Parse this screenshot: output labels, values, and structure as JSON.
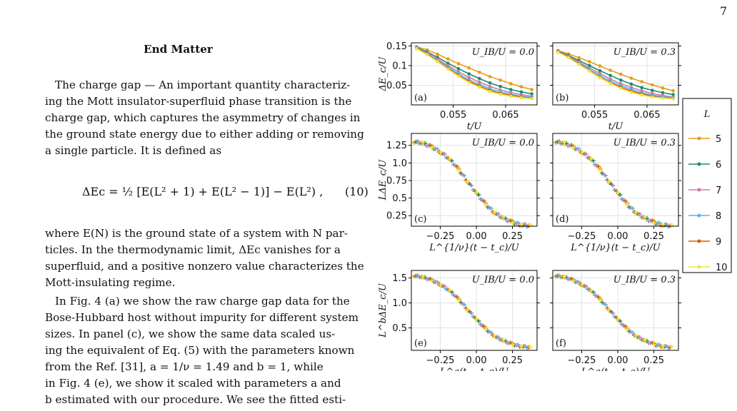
{
  "page_number": "7",
  "text": {
    "heading": "End Matter",
    "lines": [
      "The charge gap — An important quantity characteriz-",
      "ing the Mott insulator-superfluid phase transition is the",
      "charge gap, which captures the asymmetry of changes in",
      "the ground state energy due to either adding or removing",
      "a single particle. It is defined as",
      "where E(N) is the ground state of a system with N par-",
      "ticles. In the thermodynamic limit, ΔEc vanishes for a",
      "superfluid, and a positive nonzero value characterizes the",
      "Mott-insulating regime.",
      "In Fig. 4 (a) we show the raw charge gap data for the",
      "Bose-Hubbard host without impurity for different system",
      "sizes. In panel (c), we show the same data scaled us-",
      "ing the equivalent of Eq. (5) with the parameters known",
      "from the Ref. [31], a = 1/ν = 1.49 and b = 1, while",
      "in Fig. 4 (e), we show it scaled with parameters a and",
      "b estimated with our procedure. We see the fitted esti-"
    ],
    "equation": "ΔEc = ½ [E(L² + 1) + E(L² − 1)] − E(L²) ,",
    "equation_number": "(10)"
  },
  "figure": {
    "legend_title": "L",
    "series_names": [
      "5",
      "6",
      "7",
      "8",
      "9",
      "10"
    ],
    "colors": [
      "#e69c1a",
      "#1b8a6b",
      "#cc79a7",
      "#56b4e9",
      "#d55e00",
      "#f0e442"
    ]
  },
  "chart_data": [
    {
      "type": "line",
      "panel": "(a)",
      "annotation": "U_IB/U = 0.0",
      "xlabel": "t/U",
      "ylabel": "ΔE_c/U",
      "xlim": [
        0.047,
        0.071
      ],
      "ylim": [
        0.0,
        0.158
      ],
      "xticks": [
        0.055,
        0.065
      ],
      "yticks": [
        0.05,
        0.1,
        0.15
      ],
      "x": [
        0.048,
        0.05,
        0.052,
        0.054,
        0.056,
        0.058,
        0.06,
        0.062,
        0.064,
        0.066,
        0.068,
        0.07
      ],
      "series": [
        {
          "name": "5",
          "values": [
            0.148,
            0.14,
            0.129,
            0.117,
            0.105,
            0.094,
            0.083,
            0.072,
            0.063,
            0.054,
            0.046,
            0.039
          ]
        },
        {
          "name": "6",
          "values": [
            0.146,
            0.135,
            0.121,
            0.106,
            0.092,
            0.079,
            0.067,
            0.056,
            0.047,
            0.039,
            0.033,
            0.028
          ]
        },
        {
          "name": "7",
          "values": [
            0.145,
            0.132,
            0.116,
            0.1,
            0.084,
            0.07,
            0.058,
            0.047,
            0.038,
            0.031,
            0.026,
            0.022
          ]
        },
        {
          "name": "8",
          "values": [
            0.144,
            0.13,
            0.113,
            0.096,
            0.079,
            0.064,
            0.052,
            0.041,
            0.033,
            0.027,
            0.022,
            0.019
          ]
        },
        {
          "name": "9",
          "values": [
            0.143,
            0.129,
            0.111,
            0.093,
            0.075,
            0.06,
            0.048,
            0.037,
            0.029,
            0.024,
            0.02,
            0.017
          ]
        },
        {
          "name": "10",
          "values": [
            0.143,
            0.128,
            0.11,
            0.091,
            0.073,
            0.057,
            0.045,
            0.034,
            0.027,
            0.022,
            0.018,
            0.016
          ]
        }
      ]
    },
    {
      "type": "line",
      "panel": "(b)",
      "annotation": "U_IB/U = 0.3",
      "xlabel": "t/U",
      "ylabel": "",
      "xlim": [
        0.047,
        0.071
      ],
      "ylim": [
        0.0,
        0.158
      ],
      "xticks": [
        0.055,
        0.065
      ],
      "yticks": [
        0.05,
        0.1,
        0.15
      ],
      "x": [
        0.048,
        0.05,
        0.052,
        0.054,
        0.056,
        0.058,
        0.06,
        0.062,
        0.064,
        0.066,
        0.068,
        0.07
      ],
      "series": [
        {
          "name": "5",
          "values": [
            0.138,
            0.13,
            0.12,
            0.11,
            0.099,
            0.088,
            0.078,
            0.068,
            0.059,
            0.051,
            0.043,
            0.036
          ]
        },
        {
          "name": "6",
          "values": [
            0.137,
            0.126,
            0.113,
            0.1,
            0.087,
            0.075,
            0.063,
            0.053,
            0.044,
            0.037,
            0.031,
            0.026
          ]
        },
        {
          "name": "7",
          "values": [
            0.136,
            0.124,
            0.109,
            0.094,
            0.08,
            0.066,
            0.054,
            0.044,
            0.036,
            0.029,
            0.024,
            0.02
          ]
        },
        {
          "name": "8",
          "values": [
            0.135,
            0.122,
            0.106,
            0.09,
            0.075,
            0.061,
            0.049,
            0.039,
            0.031,
            0.025,
            0.021,
            0.018
          ]
        },
        {
          "name": "9",
          "values": [
            0.135,
            0.121,
            0.104,
            0.087,
            0.071,
            0.057,
            0.045,
            0.035,
            0.028,
            0.022,
            0.018,
            0.016
          ]
        },
        {
          "name": "10",
          "values": [
            0.134,
            0.12,
            0.103,
            0.086,
            0.069,
            0.055,
            0.042,
            0.032,
            0.025,
            0.02,
            0.017,
            0.015
          ]
        }
      ]
    },
    {
      "type": "scatter",
      "panel": "(c)",
      "annotation": "U_IB/U = 0.0",
      "xlabel": "L^{1/ν}(t − t_c)/U",
      "ylabel": "LΔE_c/U",
      "xlim": [
        -0.45,
        0.42
      ],
      "ylim": [
        0.1,
        1.42
      ],
      "xticks": [
        -0.25,
        0.0,
        0.25
      ],
      "yticks": [
        0.25,
        0.5,
        0.75,
        1.0,
        1.25
      ],
      "collapse": "c"
    },
    {
      "type": "scatter",
      "panel": "(d)",
      "annotation": "U_IB/U = 0.3",
      "xlabel": "L^{1/ν}(t − t_c)/U",
      "ylabel": "",
      "xlim": [
        -0.45,
        0.42
      ],
      "ylim": [
        0.1,
        1.42
      ],
      "xticks": [
        -0.25,
        0.0,
        0.25
      ],
      "yticks": [
        0.25,
        0.5,
        0.75,
        1.0,
        1.25
      ],
      "collapse": "c"
    },
    {
      "type": "scatter",
      "panel": "(e)",
      "annotation": "U_IB/U = 0.0",
      "xlabel": "L^a(t − t_c)/U",
      "ylabel": "L^bΔE_c/U",
      "xlim": [
        -0.45,
        0.42
      ],
      "ylim": [
        0.05,
        1.65
      ],
      "xticks": [
        -0.25,
        0.0,
        0.25
      ],
      "yticks": [
        0.5,
        1.0,
        1.5
      ],
      "collapse": "e"
    },
    {
      "type": "scatter",
      "panel": "(f)",
      "annotation": "U_IB/U = 0.3",
      "xlabel": "L^a(t − t_c)/U",
      "ylabel": "",
      "xlim": [
        -0.45,
        0.42
      ],
      "ylim": [
        0.05,
        1.65
      ],
      "xticks": [
        -0.25,
        0.0,
        0.25
      ],
      "yticks": [
        0.5,
        1.0,
        1.5
      ],
      "collapse": "e"
    }
  ]
}
